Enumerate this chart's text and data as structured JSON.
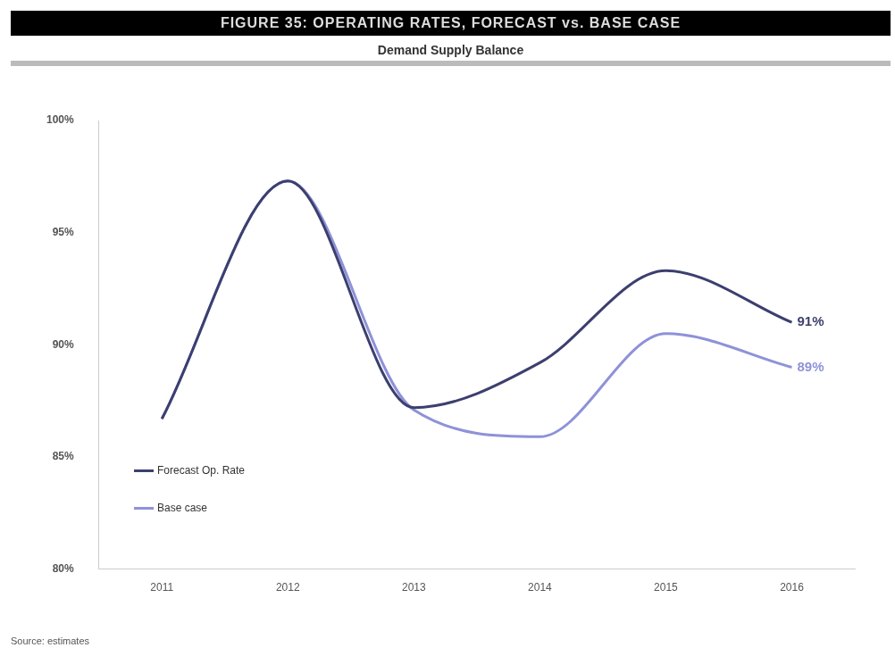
{
  "chart_data": {
    "type": "line",
    "title": "FIGURE 35: OPERATING RATES, FORECAST vs. BASE CASE",
    "subtitle": "Demand Supply Balance",
    "categories": [
      "2011",
      "2012",
      "2013",
      "2014",
      "2015",
      "2016"
    ],
    "series": [
      {
        "name": "Forecast Op. Rate",
        "color": "#3c3f6e",
        "values": [
          86.7,
          97.3,
          87.2,
          89.2,
          93.3,
          91
        ],
        "value_labels": [
          null,
          null,
          null,
          null,
          null,
          "91%"
        ]
      },
      {
        "name": "Base case",
        "color": "#8e92d8",
        "values": [
          86.7,
          97.3,
          87.1,
          85.9,
          90.5,
          89
        ],
        "value_labels": [
          null,
          null,
          null,
          null,
          null,
          "89%"
        ]
      }
    ],
    "ylim": [
      80,
      100
    ],
    "yticks": [
      {
        "value": 80,
        "label": "80%"
      },
      {
        "value": 85,
        "label": "85%"
      },
      {
        "value": 90,
        "label": "90%"
      },
      {
        "value": 95,
        "label": "95%"
      },
      {
        "value": 100,
        "label": "100%"
      }
    ],
    "grid": false,
    "legend": "bottom left",
    "marker": "none",
    "line_style": "solid",
    "annotations": [
      "Source: estimates"
    ]
  }
}
